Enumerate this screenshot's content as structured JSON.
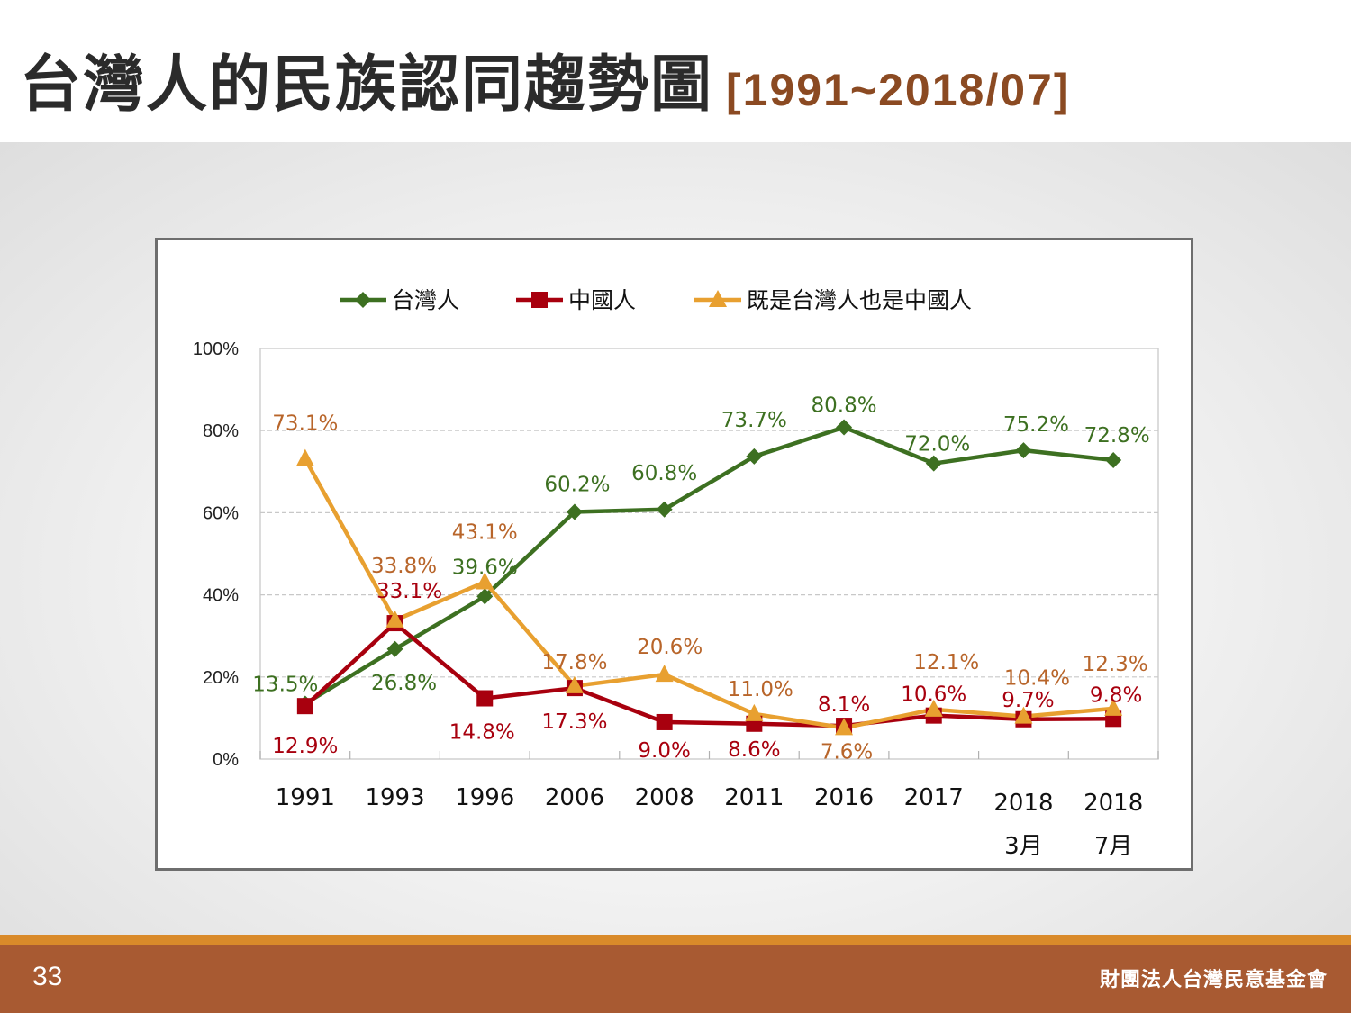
{
  "slide": {
    "title": "台灣人的民族認同趨勢圖",
    "subtitle": "[1991~2018/07]",
    "page_number": "33",
    "organization": "財團法人台灣民意基金會"
  },
  "colors": {
    "taiwanese": "#3d7021",
    "chinese": "#a8000e",
    "both": "#e8a030",
    "both_label": "#b8652a",
    "footer": "#a85a32",
    "footer_accent": "#d98a2a"
  },
  "chart_data": {
    "type": "line",
    "categories": [
      [
        "1991"
      ],
      [
        "1993"
      ],
      [
        "1996"
      ],
      [
        "2006"
      ],
      [
        "2008"
      ],
      [
        "2011"
      ],
      [
        "2016"
      ],
      [
        "2017"
      ],
      [
        "2018",
        "3月"
      ],
      [
        "2018",
        "7月"
      ]
    ],
    "ylim": [
      0,
      100
    ],
    "yticks": [
      "0%",
      "20%",
      "40%",
      "60%",
      "80%",
      "100%"
    ],
    "ytick_values": [
      0,
      20,
      40,
      60,
      80,
      100
    ],
    "grid": true,
    "legend_position": "top",
    "series": [
      {
        "name": "台灣人",
        "key": "taiwanese",
        "marker": "diamond",
        "values": [
          13.5,
          26.8,
          39.6,
          60.2,
          60.8,
          73.7,
          80.8,
          72.0,
          75.2,
          72.8
        ],
        "labels": [
          "13.5%",
          "26.8%",
          "39.6%",
          "60.2%",
          "60.8%",
          "73.7%",
          "80.8%",
          "72.0%",
          "75.2%",
          "72.8%"
        ]
      },
      {
        "name": "中國人",
        "key": "chinese",
        "marker": "square",
        "values": [
          12.9,
          33.1,
          14.8,
          17.3,
          9.0,
          8.6,
          8.1,
          10.6,
          9.7,
          9.8
        ],
        "labels": [
          "12.9%",
          "33.1%",
          "14.8%",
          "17.3%",
          "9.0%",
          "8.6%",
          "8.1%",
          "10.6%",
          "9.7%",
          "9.8%"
        ]
      },
      {
        "name": "既是台灣人也是中國人",
        "key": "both",
        "marker": "triangle",
        "values": [
          73.1,
          33.8,
          43.1,
          17.8,
          20.6,
          11.0,
          7.6,
          12.1,
          10.4,
          12.3
        ],
        "labels": [
          "73.1%",
          "33.8%",
          "43.1%",
          "17.8%",
          "20.6%",
          "11.0%",
          "7.6%",
          "12.1%",
          "10.4%",
          "12.3%"
        ]
      }
    ]
  }
}
